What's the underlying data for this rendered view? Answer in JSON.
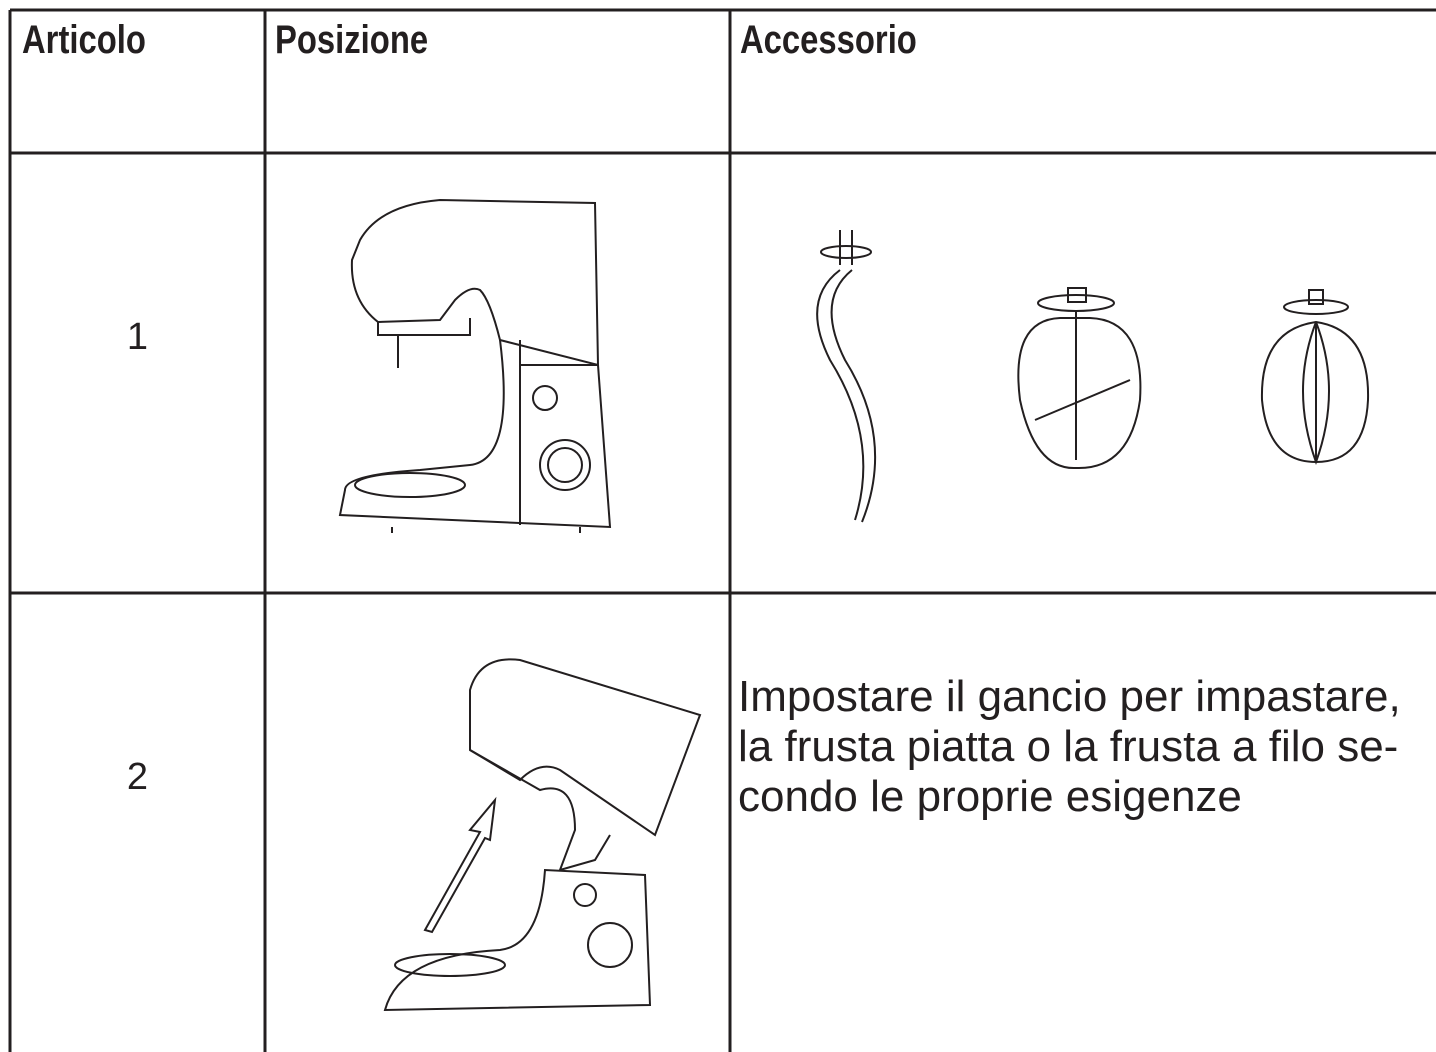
{
  "table": {
    "header": [
      "Articolo",
      "Posizione",
      "Accessorio"
    ],
    "rows": [
      {
        "item": "1"
      },
      {
        "item": "2",
        "description": [
          "Impostare il gancio per impastare,",
          "la frusta piatta o la frusta a filo se-",
          "condo le proprie esigenze"
        ]
      }
    ]
  }
}
